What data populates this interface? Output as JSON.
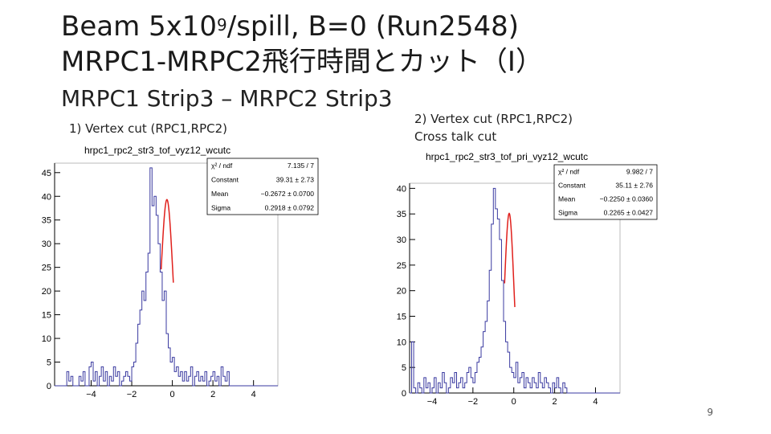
{
  "slide": {
    "title_line1_prefix": "Beam 5x10",
    "title_line1_sup": "9",
    "title_line1_suffix": "/spill, B=0 (Run2548)",
    "title_line2": "MRPC1-MRPC2飛行時間とカット（I）",
    "subtitle": "MRPC1 Strip3 – MRPC2 Strip3",
    "caption1": "1) Vertex cut (RPC1,RPC2)",
    "caption2_line1": "2) Vertex cut (RPC1,RPC2)",
    "caption2_line2": "Cross talk cut",
    "page_number": "9"
  },
  "colors": {
    "histogram": "#3a3aa0",
    "fit": "#e0201c",
    "frame": "#000000"
  },
  "chart_data": [
    {
      "type": "histogram",
      "title": "hrpc1_rpc2_str3_tof_vyz12_wcutc",
      "xlim": [
        -5.8,
        5.2
      ],
      "ylim": [
        0,
        47
      ],
      "x_ticks": [
        -4,
        -2,
        0,
        2,
        4
      ],
      "y_ticks": [
        0,
        5,
        10,
        15,
        20,
        25,
        30,
        35,
        40,
        45
      ],
      "bin_width": 0.1,
      "bin_start": -5.8,
      "values": [
        0,
        0,
        0,
        0,
        0,
        0,
        3,
        1,
        2,
        0,
        0,
        0,
        2,
        1,
        3,
        0,
        0,
        4,
        5,
        1,
        3,
        0,
        2,
        4,
        1,
        3,
        0,
        2,
        1,
        4,
        2,
        3,
        0,
        1,
        2,
        3,
        2,
        1,
        4,
        5,
        9,
        13,
        16,
        20,
        18,
        24,
        28,
        46,
        38,
        40,
        36,
        30,
        24,
        18,
        20,
        11,
        8,
        5,
        6,
        3,
        4,
        2,
        3,
        1,
        3,
        1,
        2,
        4,
        0,
        2,
        3,
        1,
        2,
        1,
        3,
        0,
        1,
        2,
        3,
        1,
        2,
        0,
        4,
        2,
        1,
        3,
        0,
        0,
        0,
        0,
        0,
        0,
        0,
        0,
        0,
        0,
        0,
        0,
        0,
        0,
        0,
        0,
        0,
        0,
        0,
        0,
        0,
        0,
        0,
        0
      ],
      "fit": {
        "mean": -0.2672,
        "sigma": 0.2918,
        "constant": 39.31,
        "range": [
          -0.55,
          0.05
        ]
      },
      "stats": [
        {
          "label": "χ² / ndf",
          "value": "7.135 / 7"
        },
        {
          "label": "Constant",
          "value": "39.31 ± 2.73"
        },
        {
          "label": "Mean",
          "value": "−0.2672 ± 0.0700"
        },
        {
          "label": "Sigma",
          "value": "0.2918 ± 0.0792"
        }
      ]
    },
    {
      "type": "histogram",
      "title": "hrpc1_rpc2_str3_tof_pri_vyz12_wcutc",
      "xlim": [
        -5.1,
        5.2
      ],
      "ylim": [
        0,
        41
      ],
      "x_ticks": [
        -4,
        -2,
        0,
        2,
        4
      ],
      "y_ticks": [
        0,
        5,
        10,
        15,
        20,
        25,
        30,
        35,
        40
      ],
      "bin_width": 0.1,
      "bin_start": -5.1,
      "values": [
        0,
        10,
        1,
        0,
        2,
        1,
        0,
        3,
        1,
        2,
        0,
        1,
        3,
        0,
        2,
        1,
        4,
        2,
        0,
        1,
        3,
        2,
        4,
        1,
        2,
        3,
        1,
        2,
        4,
        5,
        3,
        2,
        4,
        6,
        7,
        9,
        12,
        14,
        18,
        24,
        33,
        40,
        36,
        34,
        30,
        22,
        14,
        10,
        8,
        5,
        4,
        3,
        6,
        2,
        3,
        4,
        1,
        3,
        2,
        1,
        3,
        2,
        1,
        4,
        2,
        1,
        3,
        2,
        1,
        0,
        2,
        1,
        3,
        1,
        0,
        2,
        1,
        0,
        0,
        0,
        0,
        0,
        0,
        0,
        0,
        0,
        0,
        0,
        0,
        0,
        0,
        0,
        0,
        0,
        0,
        0,
        0,
        0,
        0,
        0,
        0,
        0,
        0
      ],
      "fit": {
        "mean": -0.225,
        "sigma": 0.2265,
        "constant": 35.11,
        "range": [
          -0.45,
          0.05
        ]
      },
      "stats": [
        {
          "label": "χ² / ndf",
          "value": "9.982 / 7"
        },
        {
          "label": "Constant",
          "value": "35.11 ± 2.76"
        },
        {
          "label": "Mean",
          "value": "−0.2250 ± 0.0360"
        },
        {
          "label": "Sigma",
          "value": "0.2265 ± 0.0427"
        }
      ]
    }
  ]
}
